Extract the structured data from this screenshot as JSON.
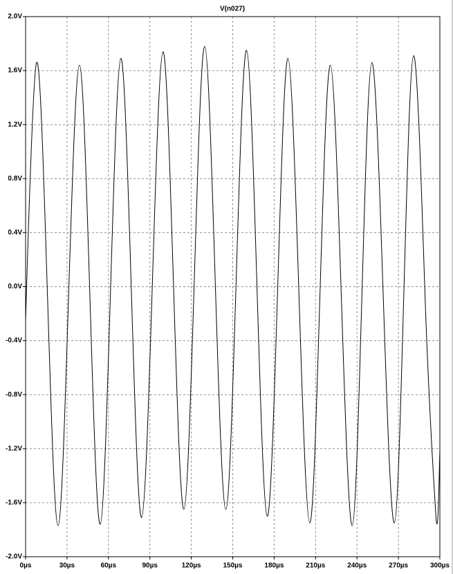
{
  "chart_data": {
    "type": "line",
    "title": "V(n027)",
    "x": [
      0,
      8,
      15.8,
      23.5,
      31.2,
      39,
      46.5,
      54,
      61.5,
      69,
      76.5,
      84,
      91.8,
      99.5,
      107,
      114.6,
      122.2,
      129.7,
      137.3,
      145,
      152.5,
      160,
      167.5,
      175,
      182.5,
      190,
      197.9,
      205.8,
      213.2,
      220.7,
      228.6,
      236.5,
      243.6,
      250.8,
      258.9,
      267,
      274,
      281,
      289,
      297,
      300
    ],
    "series": [
      {
        "name": "V(n027)",
        "color": "#000000",
        "values": [
          -0.25,
          1.66,
          -0.05,
          -1.77,
          -0.05,
          1.64,
          -0.05,
          -1.76,
          -0.03,
          1.69,
          0.0,
          -1.71,
          0.02,
          1.74,
          0.05,
          -1.65,
          0.06,
          1.78,
          0.05,
          -1.65,
          0.05,
          1.75,
          0.02,
          -1.7,
          -0.03,
          1.69,
          -0.04,
          -1.75,
          -0.05,
          1.64,
          -0.06,
          -1.77,
          -0.05,
          1.66,
          -0.04,
          -1.75,
          -0.02,
          1.71,
          0.01,
          -1.68,
          -1.22
        ]
      }
    ],
    "xlim": [
      0,
      300
    ],
    "xticks": [
      {
        "value": 0,
        "label": "0µs"
      },
      {
        "value": 30,
        "label": "30µs"
      },
      {
        "value": 60,
        "label": "60µs"
      },
      {
        "value": 90,
        "label": "90µs"
      },
      {
        "value": 120,
        "label": "120µs"
      },
      {
        "value": 150,
        "label": "150µs"
      },
      {
        "value": 180,
        "label": "180µs"
      },
      {
        "value": 210,
        "label": "210µs"
      },
      {
        "value": 240,
        "label": "240µs"
      },
      {
        "value": 270,
        "label": "270µs"
      },
      {
        "value": 300,
        "label": "300µs"
      }
    ],
    "ylim": [
      -2,
      2
    ],
    "yticks": [
      {
        "value": 2,
        "label": "2.0V"
      },
      {
        "value": 1.6,
        "label": "1.6V"
      },
      {
        "value": 1.2,
        "label": "1.2V"
      },
      {
        "value": 0.8,
        "label": "0.8V"
      },
      {
        "value": 0.4,
        "label": "0.4V"
      },
      {
        "value": 0,
        "label": "0.0V"
      },
      {
        "value": -0.4,
        "label": "-0.4V"
      },
      {
        "value": -0.8,
        "label": "-0.8V"
      },
      {
        "value": -1.2,
        "label": "-1.2V"
      },
      {
        "value": -1.6,
        "label": "-1.6V"
      },
      {
        "value": -2,
        "label": "-2.0V"
      }
    ],
    "grid": true
  }
}
